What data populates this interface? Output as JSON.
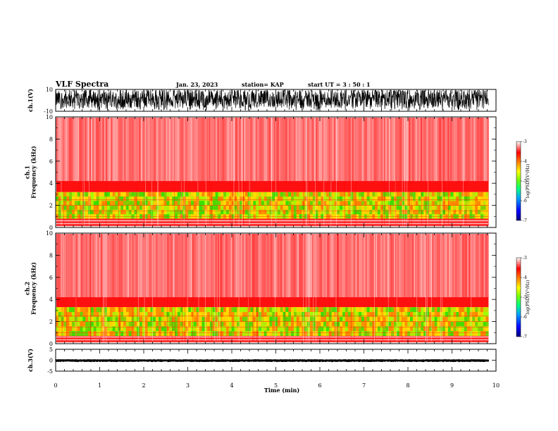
{
  "header": {
    "title": "VLF Spectra",
    "date": "Jan. 23, 2023",
    "station": "station= KAP",
    "start_time": "start  UT =   3  : 50 : 1"
  },
  "colors": {
    "trace": "#000000",
    "spectrogram_background": "#ff3b3b",
    "band_green": "#33e000",
    "band_yellow": "#ffe000",
    "colormap": [
      "#00007f",
      "#0000ff",
      "#00a0ff",
      "#00ff80",
      "#80ff00",
      "#ffff00",
      "#ff8000",
      "#ff0000",
      "#ffffff"
    ]
  },
  "chart_data": [
    {
      "type": "line",
      "panel": "ch1-waveform",
      "ylabel": "ch.1(V)",
      "ylim": [
        -10,
        10
      ],
      "yticks": [
        "10",
        "-10"
      ],
      "xlim": [
        0,
        10
      ],
      "description_of_signal": "dense broadband waveform filling most of the range",
      "envelope_upper": 9,
      "envelope_lower": -7
    },
    {
      "type": "heatmap",
      "panel": "ch1-spectrogram",
      "ylabel": "ch.1\nFrequency  (kHz)",
      "ylim": [
        0,
        10
      ],
      "yticks": [
        "0",
        "2",
        "4",
        "6",
        "8",
        "10"
      ],
      "xlim": [
        0,
        10
      ],
      "xticks": [
        "0",
        "1",
        "2",
        "3",
        "4",
        "5",
        "6",
        "7",
        "8",
        "9",
        "10"
      ],
      "data_extent_x": [
        0,
        9.83
      ],
      "intense_band_khz": [
        0.8,
        3.2
      ],
      "colorbar": {
        "label": "log(PSD)(V²/Hz)",
        "ticks": [
          "-3",
          "-4",
          "-5",
          "-6",
          "-7"
        ],
        "range": [
          -7,
          -3
        ]
      }
    },
    {
      "type": "heatmap",
      "panel": "ch2-spectrogram",
      "ylabel": "ch.2\nFrequency  (kHz)",
      "ylim": [
        0,
        10
      ],
      "yticks": [
        "0",
        "2",
        "4",
        "6",
        "8",
        "10"
      ],
      "xlim": [
        0,
        10
      ],
      "xticks": [
        "0",
        "1",
        "2",
        "3",
        "4",
        "5",
        "6",
        "7",
        "8",
        "9",
        "10"
      ],
      "data_extent_x": [
        0,
        9.83
      ],
      "intense_band_khz": [
        0.7,
        3.3
      ],
      "colorbar": {
        "label": "log(PSD)(V²/Hz)",
        "ticks": [
          "-3",
          "-4",
          "-5",
          "-6",
          "-7"
        ],
        "range": [
          -7,
          -3
        ]
      }
    },
    {
      "type": "line",
      "panel": "ch3-waveform",
      "ylabel": "ch.3(V)",
      "ylim": [
        -5,
        5
      ],
      "yticks": [
        "5",
        "0",
        "-5"
      ],
      "xlim": [
        0,
        10
      ],
      "xticks": [
        "0",
        "1",
        "2",
        "3",
        "4",
        "5",
        "6",
        "7",
        "8",
        "9",
        "10"
      ],
      "xlabel": "Time  (min)",
      "envelope_upper": 0.4,
      "envelope_lower": -0.8
    }
  ]
}
